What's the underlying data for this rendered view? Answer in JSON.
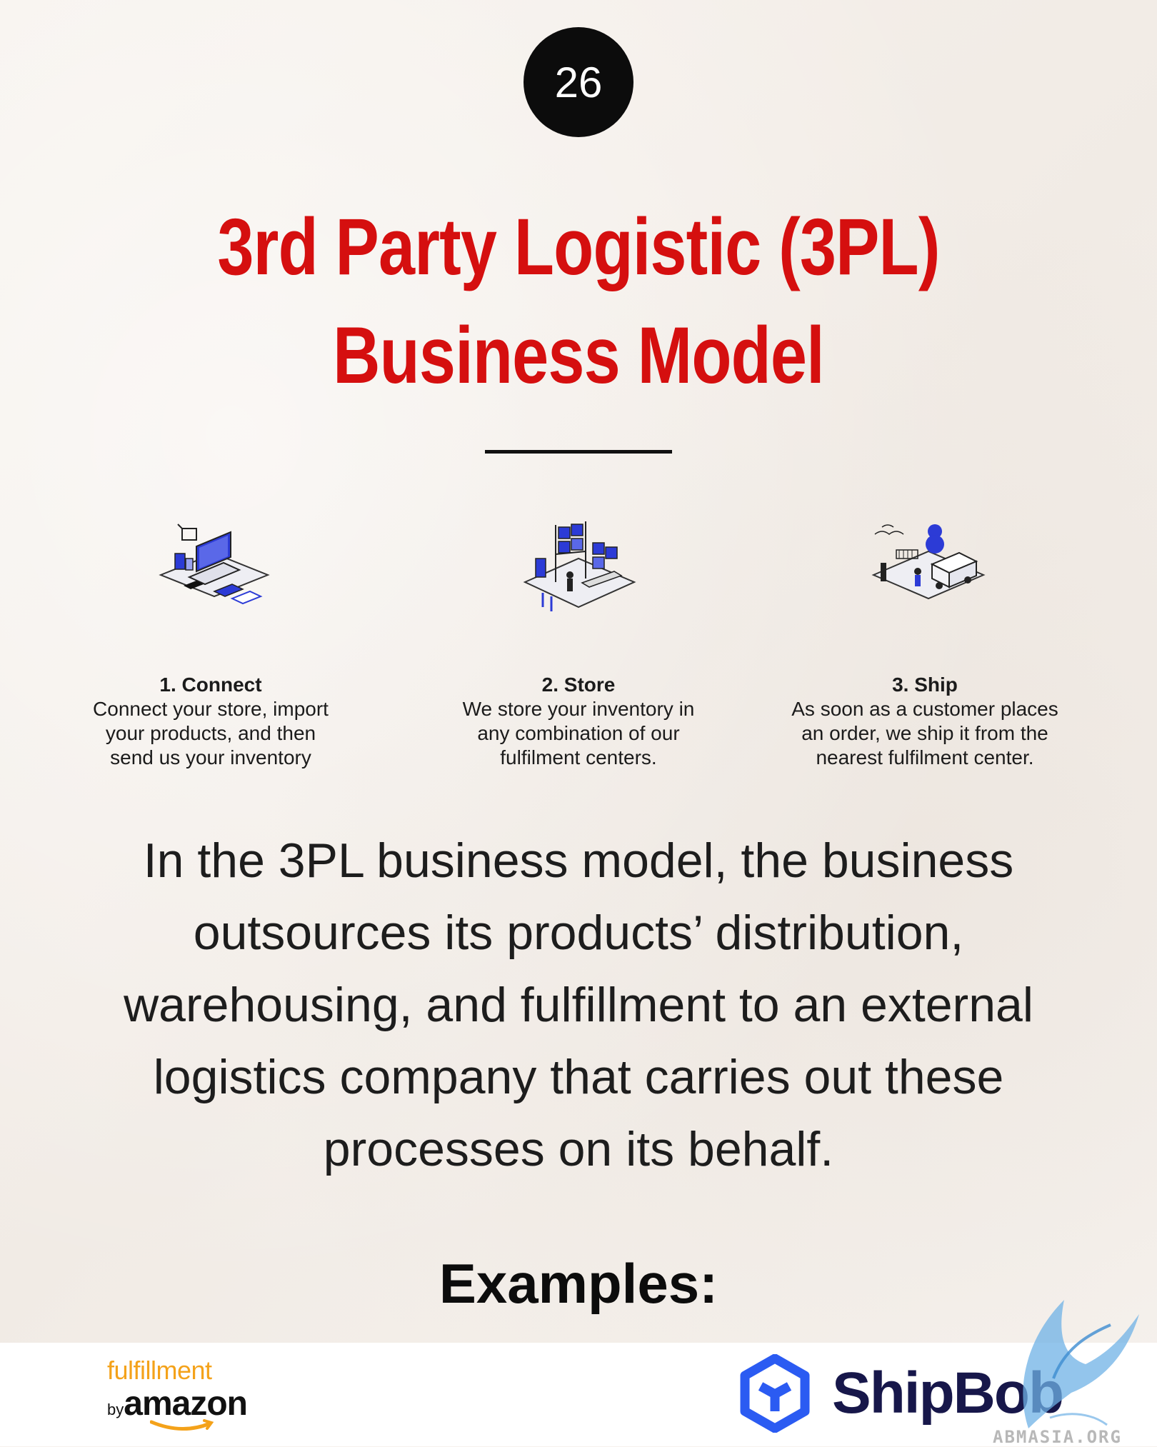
{
  "page_number": "26",
  "title": {
    "line1": "3rd Party Logistic (3PL)",
    "line2": "Business Model"
  },
  "steps": [
    {
      "icon": "laptop-store-icon",
      "title": "1. Connect",
      "desc": [
        "Connect your store, import",
        "your products, and then",
        "send us your inventory"
      ]
    },
    {
      "icon": "warehouse-icon",
      "title": "2. Store",
      "desc": [
        "We store your inventory in",
        "any combination of our",
        "fulfilment centers."
      ]
    },
    {
      "icon": "delivery-truck-icon",
      "title": "3. Ship",
      "desc": [
        "As soon as a customer places",
        "an order, we ship it from the",
        "nearest fulfilment center."
      ]
    }
  ],
  "body": [
    "In the 3PL business model, the business",
    "outsources its products’ distribution,",
    "warehousing, and fulfillment to an external",
    "logistics company that carries out these",
    "processes on its behalf."
  ],
  "examples_heading": "Examples:",
  "logos": {
    "fba": {
      "line1": "fulfillment",
      "by": "by",
      "brand": "amazon"
    },
    "shipbob": {
      "name": "ShipBob"
    }
  },
  "watermark": "ABMASIA.ORG",
  "colors": {
    "title_red": "#d50f0f",
    "illustration_blue": "#2c3bd6",
    "amazon_orange": "#f4a21a",
    "shipbob_blue": "#2b5bf2",
    "shipbob_navy": "#17174a"
  }
}
